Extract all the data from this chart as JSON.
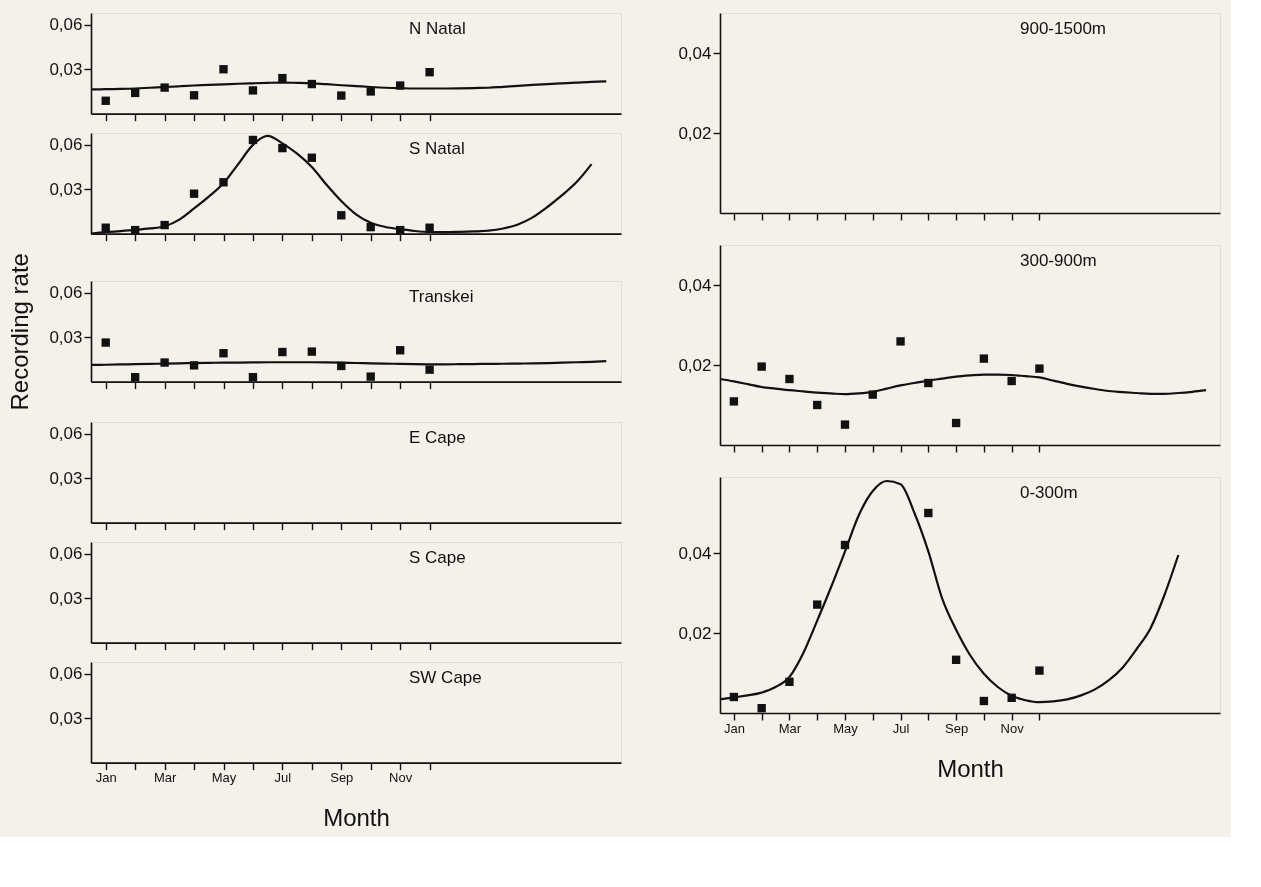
{
  "chart_data": [
    {
      "type": "scatter",
      "title": "N Natal",
      "ylim": [
        0,
        0.068
      ],
      "tick_labels": "y",
      "categories": [
        null,
        null,
        null,
        null,
        null,
        null,
        null,
        null,
        null,
        null,
        null,
        null,
        null,
        null,
        null,
        null,
        null,
        null,
        null,
        null,
        null,
        null,
        null,
        null,
        null,
        null,
        null,
        null,
        null,
        null,
        null,
        null,
        null,
        null,
        null,
        null,
        null
      ],
      "yticks": [
        {
          "value": 0.03,
          "label": "0,03"
        },
        {
          "value": 0.06,
          "label": "0,06"
        }
      ],
      "series": [
        {
          "marker": "square",
          "color": "#111111",
          "values": [
            null,
            0.0087,
            null,
            0.014,
            null,
            0.0176,
            null,
            0.0124,
            null,
            0.03,
            null,
            0.0157,
            null,
            0.024,
            null,
            0.02,
            null,
            0.0122,
            null,
            0.015,
            null,
            0.019,
            null,
            0.028,
            null,
            null,
            null,
            null,
            null,
            null,
            null,
            null,
            null,
            null,
            null,
            null,
            null
          ]
        },
        {
          "type": "line",
          "color": "#111111",
          "values": [
            0.0164,
            0.0165,
            0.0167,
            0.017,
            0.0175,
            0.018,
            0.0185,
            0.019,
            0.0194,
            0.0198,
            0.0202,
            0.0205,
            0.0208,
            0.021,
            0.0208,
            0.0205,
            0.0199,
            0.0192,
            0.0186,
            0.018,
            0.0175,
            0.0172,
            0.017,
            0.017,
            0.017,
            0.0171,
            0.0173,
            0.0175,
            0.0181,
            0.0187,
            0.0194,
            0.02,
            0.0205,
            0.021,
            0.0215,
            0.0218,
            null
          ]
        }
      ]
    },
    {
      "type": "scatter",
      "title": "S Natal",
      "ylim": [
        0,
        0.068
      ],
      "tick_labels": "y",
      "categories": [
        null,
        null,
        null,
        null,
        null,
        null,
        null,
        null,
        null,
        null,
        null,
        null,
        null,
        null,
        null,
        null,
        null,
        null,
        null,
        null,
        null,
        null,
        null,
        null,
        null,
        null,
        null,
        null,
        null,
        null,
        null,
        null,
        null,
        null,
        null,
        null,
        null
      ],
      "yticks": [
        {
          "value": 0.03,
          "label": "0,03"
        },
        {
          "value": 0.06,
          "label": "0,06"
        }
      ],
      "series": [
        {
          "marker": "square",
          "color": "#111111",
          "values": [
            null,
            0.004,
            null,
            0.0024,
            null,
            0.0058,
            null,
            0.027,
            null,
            0.0347,
            null,
            0.0633,
            null,
            0.0578,
            null,
            0.0513,
            null,
            0.0124,
            null,
            0.0044,
            null,
            0.0024,
            null,
            0.004,
            null,
            null,
            null,
            null,
            null,
            null,
            null,
            null,
            null,
            null,
            null,
            null,
            null
          ]
        },
        {
          "type": "line",
          "color": "#111111",
          "values": [
            0,
            0.001,
            0.0017,
            0.0025,
            0.0035,
            0.005,
            0.0095,
            0.017,
            0.025,
            0.034,
            0.047,
            0.06,
            0.066,
            0.061,
            0.054,
            0.045,
            0.033,
            0.022,
            0.013,
            0.0073,
            0.0045,
            0.003,
            0.0018,
            0.0011,
            0.001,
            0.0012,
            0.0015,
            0.002,
            0.0035,
            0.0062,
            0.011,
            0.018,
            0.026,
            0.035,
            0.047,
            null,
            null
          ]
        }
      ]
    },
    {
      "type": "scatter",
      "title": "Transkei",
      "ylabel": "Recording rate",
      "ylim": [
        0,
        0.068
      ],
      "tick_labels": "y",
      "categories": [
        null,
        null,
        null,
        null,
        null,
        null,
        null,
        null,
        null,
        null,
        null,
        null,
        null,
        null,
        null,
        null,
        null,
        null,
        null,
        null,
        null,
        null,
        null,
        null,
        null,
        null,
        null,
        null,
        null,
        null,
        null,
        null,
        null,
        null,
        null,
        null,
        null
      ],
      "yticks": [
        {
          "value": 0.03,
          "label": "0,03"
        },
        {
          "value": 0.06,
          "label": "0,06"
        }
      ],
      "series": [
        {
          "marker": "square",
          "color": "#111111",
          "values": [
            null,
            0.0264,
            null,
            0.003,
            null,
            0.0129,
            null,
            0.011,
            null,
            0.0192,
            null,
            0.003,
            null,
            0.02,
            null,
            0.0203,
            null,
            0.0106,
            null,
            0.0034,
            null,
            0.0212,
            null,
            0.0081,
            null,
            null,
            null,
            null,
            null,
            null,
            null,
            null,
            null,
            null,
            null,
            null,
            null
          ]
        },
        {
          "type": "line",
          "color": "#111111",
          "values": [
            0.0113,
            0.0114,
            0.0116,
            0.0118,
            0.012,
            0.0122,
            0.0124,
            0.0125,
            0.0127,
            0.0128,
            0.0129,
            0.013,
            0.0131,
            0.0131,
            0.0131,
            0.0131,
            0.013,
            0.0128,
            0.0126,
            0.0124,
            0.0122,
            0.012,
            0.0118,
            0.0117,
            0.0117,
            0.0118,
            0.0119,
            0.012,
            0.0121,
            0.0122,
            0.0123,
            0.0125,
            0.0128,
            0.0131,
            0.0134,
            0.0138,
            null
          ]
        }
      ]
    },
    {
      "type": "scatter",
      "title": "E Cape",
      "ylim": [
        0,
        0.068
      ],
      "tick_labels": "y",
      "categories": [
        null,
        null,
        null,
        null,
        null,
        null,
        null,
        null,
        null,
        null,
        null,
        null,
        null,
        null,
        null,
        null,
        null,
        null,
        null,
        null,
        null,
        null,
        null,
        null,
        null,
        null,
        null,
        null,
        null,
        null,
        null,
        null,
        null,
        null,
        null,
        null,
        null
      ],
      "yticks": [
        {
          "value": 0.03,
          "label": "0,03"
        },
        {
          "value": 0.06,
          "label": "0,06"
        }
      ]
    },
    {
      "type": "scatter",
      "title": "S Cape",
      "ylim": [
        0,
        0.068
      ],
      "tick_labels": "y",
      "categories": [
        null,
        null,
        null,
        null,
        null,
        null,
        null,
        null,
        null,
        null,
        null,
        null,
        null,
        null,
        null,
        null,
        null,
        null,
        null,
        null,
        null,
        null,
        null,
        null,
        null,
        null,
        null,
        null,
        null,
        null,
        null,
        null,
        null,
        null,
        null,
        null,
        null
      ],
      "yticks": [
        {
          "value": 0.03,
          "label": "0,03"
        },
        {
          "value": 0.06,
          "label": "0,06"
        }
      ]
    },
    {
      "type": "scatter",
      "title": "SW Cape",
      "xlabel": "Month",
      "ylim": [
        0,
        0.068
      ],
      "categories": [
        null,
        "Jan",
        null,
        null,
        null,
        "Mar",
        null,
        null,
        null,
        "May",
        null,
        null,
        null,
        "Jul",
        null,
        null,
        null,
        "Sep",
        null,
        null,
        null,
        "Nov",
        null,
        null,
        null,
        null,
        null,
        null,
        null,
        null,
        null,
        null,
        null,
        null,
        null,
        null,
        null
      ],
      "yticks": [
        {
          "value": 0.03,
          "label": "0,03"
        },
        {
          "value": 0.06,
          "label": "0,06"
        }
      ]
    },
    {
      "type": "scatter",
      "title": "900-1500m",
      "ylim": [
        0,
        0.05
      ],
      "tick_labels": "y",
      "categories": [
        null,
        null,
        null,
        null,
        null,
        null,
        null,
        null,
        null,
        null,
        null,
        null,
        null,
        null,
        null,
        null,
        null,
        null,
        null,
        null,
        null,
        null,
        null,
        null,
        null,
        null,
        null,
        null,
        null,
        null,
        null,
        null,
        null,
        null,
        null,
        null,
        null
      ],
      "yticks": [
        {
          "value": 0.02,
          "label": "0,02"
        },
        {
          "value": 0.04,
          "label": "0,04"
        }
      ]
    },
    {
      "type": "scatter",
      "title": "300-900m",
      "ylim": [
        0,
        0.05
      ],
      "tick_labels": "y",
      "categories": [
        null,
        null,
        null,
        null,
        null,
        null,
        null,
        null,
        null,
        null,
        null,
        null,
        null,
        null,
        null,
        null,
        null,
        null,
        null,
        null,
        null,
        null,
        null,
        null,
        null,
        null,
        null,
        null,
        null,
        null,
        null,
        null,
        null,
        null,
        null,
        null,
        null
      ],
      "yticks": [
        {
          "value": 0.02,
          "label": "0,02"
        },
        {
          "value": 0.04,
          "label": "0,04"
        }
      ],
      "series": [
        {
          "marker": "square",
          "color": "#111111",
          "values": [
            null,
            0.0109,
            null,
            0.0196,
            null,
            0.0165,
            null,
            0.01,
            null,
            0.0051,
            null,
            0.0126,
            null,
            0.0259,
            null,
            0.0155,
            null,
            0.0055,
            null,
            0.0216,
            null,
            0.016,
            null,
            0.0191,
            null,
            null,
            null,
            null,
            null,
            null,
            null,
            null,
            null,
            null,
            null,
            null,
            null
          ]
        },
        {
          "type": "line",
          "color": "#111111",
          "values": [
            0.0165,
            0.0159,
            0.0152,
            0.0145,
            0.0141,
            0.0137,
            0.0134,
            0.0131,
            0.0129,
            0.0127,
            0.0129,
            0.0133,
            0.0141,
            0.0149,
            0.0155,
            0.0161,
            0.0166,
            0.0171,
            0.0174,
            0.0176,
            0.0176,
            0.0175,
            0.0172,
            0.0169,
            0.0161,
            0.0153,
            0.0146,
            0.014,
            0.0135,
            0.0132,
            0.013,
            0.0128,
            0.0128,
            0.013,
            0.0133,
            0.0137,
            null
          ]
        }
      ]
    },
    {
      "type": "scatter",
      "title": "0-300m",
      "xlabel": "Month",
      "ylim": [
        0,
        0.059
      ],
      "categories": [
        null,
        "Jan",
        null,
        null,
        null,
        "Mar",
        null,
        null,
        null,
        "May",
        null,
        null,
        null,
        "Jul",
        null,
        null,
        null,
        "Sep",
        null,
        null,
        null,
        "Nov",
        null,
        null,
        null,
        null,
        null,
        null,
        null,
        null,
        null,
        null,
        null,
        null,
        null,
        null,
        null
      ],
      "yticks": [
        {
          "value": 0.02,
          "label": "0,02"
        },
        {
          "value": 0.04,
          "label": "0,04"
        }
      ],
      "series": [
        {
          "marker": "square",
          "color": "#111111",
          "values": [
            null,
            0.004,
            null,
            0.0012,
            null,
            0.0078,
            null,
            0.0271,
            null,
            0.042,
            null,
            null,
            null,
            null,
            null,
            0.05,
            null,
            0.0133,
            null,
            0.003,
            null,
            0.0038,
            null,
            0.0106,
            null,
            null,
            null,
            null,
            null,
            null,
            null,
            null,
            null,
            null,
            null,
            null,
            null
          ]
        },
        {
          "type": "line",
          "color": "#111111",
          "values": [
            0.0034,
            0.0039,
            0.0044,
            0.0051,
            0.0065,
            0.009,
            0.015,
            0.0231,
            0.0315,
            0.0404,
            0.0495,
            0.0555,
            0.058,
            0.0572,
            0.05,
            0.0404,
            0.0286,
            0.0208,
            0.0145,
            0.0098,
            0.0065,
            0.0043,
            0.0032,
            0.0027,
            0.0029,
            0.0034,
            0.0044,
            0.0059,
            0.0082,
            0.0114,
            0.016,
            0.0212,
            0.0295,
            0.0395,
            null,
            null,
            null
          ]
        }
      ]
    }
  ]
}
